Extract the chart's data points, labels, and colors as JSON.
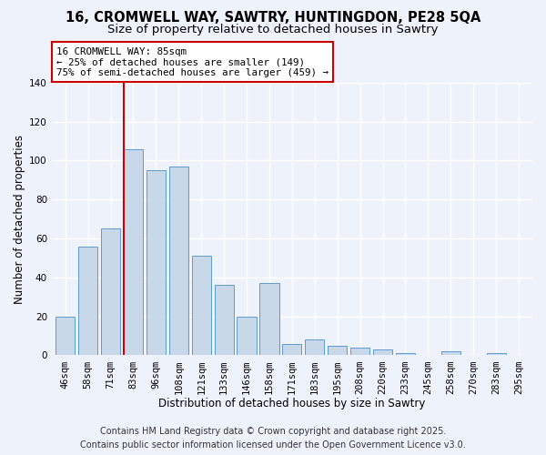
{
  "title": "16, CROMWELL WAY, SAWTRY, HUNTINGDON, PE28 5QA",
  "subtitle": "Size of property relative to detached houses in Sawtry",
  "xlabel": "Distribution of detached houses by size in Sawtry",
  "ylabel": "Number of detached properties",
  "categories": [
    "46sqm",
    "58sqm",
    "71sqm",
    "83sqm",
    "96sqm",
    "108sqm",
    "121sqm",
    "133sqm",
    "146sqm",
    "158sqm",
    "171sqm",
    "183sqm",
    "195sqm",
    "208sqm",
    "220sqm",
    "233sqm",
    "245sqm",
    "258sqm",
    "270sqm",
    "283sqm",
    "295sqm"
  ],
  "values": [
    20,
    56,
    65,
    106,
    95,
    97,
    51,
    36,
    20,
    37,
    6,
    8,
    5,
    4,
    3,
    1,
    0,
    2,
    0,
    1,
    0
  ],
  "bar_color": "#c8d8e8",
  "bar_edge_color": "#5b9bd5",
  "highlight_index": 3,
  "annotation_line1": "16 CROMWELL WAY: 85sqm",
  "annotation_line2": "← 25% of detached houses are smaller (149)",
  "annotation_line3": "75% of semi-detached houses are larger (459) →",
  "annotation_box_color": "#ffffff",
  "annotation_box_edge_color": "#cc0000",
  "vline_color": "#cc0000",
  "ylim": [
    0,
    140
  ],
  "yticks": [
    0,
    20,
    40,
    60,
    80,
    100,
    120,
    140
  ],
  "footer_line1": "Contains HM Land Registry data © Crown copyright and database right 2025.",
  "footer_line2": "Contains public sector information licensed under the Open Government Licence v3.0.",
  "bg_color": "#eef2fb",
  "grid_color": "#ffffff",
  "title_fontsize": 10.5,
  "subtitle_fontsize": 9.5,
  "axis_label_fontsize": 8.5,
  "tick_fontsize": 7.5,
  "annotation_fontsize": 7.8,
  "footer_fontsize": 7.0
}
